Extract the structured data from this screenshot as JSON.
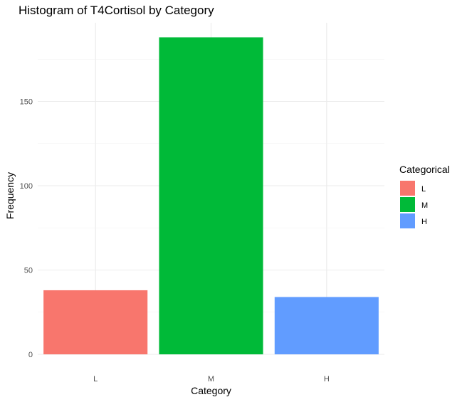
{
  "chart_data": {
    "type": "bar",
    "title": "Histogram of T4Cortisol by Category",
    "xlabel": "Category",
    "ylabel": "Frequency",
    "categories": [
      "L",
      "M",
      "H"
    ],
    "values": [
      38,
      188,
      34
    ],
    "colors": [
      "#F8766D",
      "#00BA38",
      "#619CFF"
    ],
    "ylim": [
      0,
      198
    ],
    "yticks": [
      0,
      50,
      100,
      150
    ],
    "grid": true,
    "legend": {
      "title": "Categorical",
      "position": "right",
      "items": [
        "L",
        "M",
        "H"
      ]
    }
  }
}
